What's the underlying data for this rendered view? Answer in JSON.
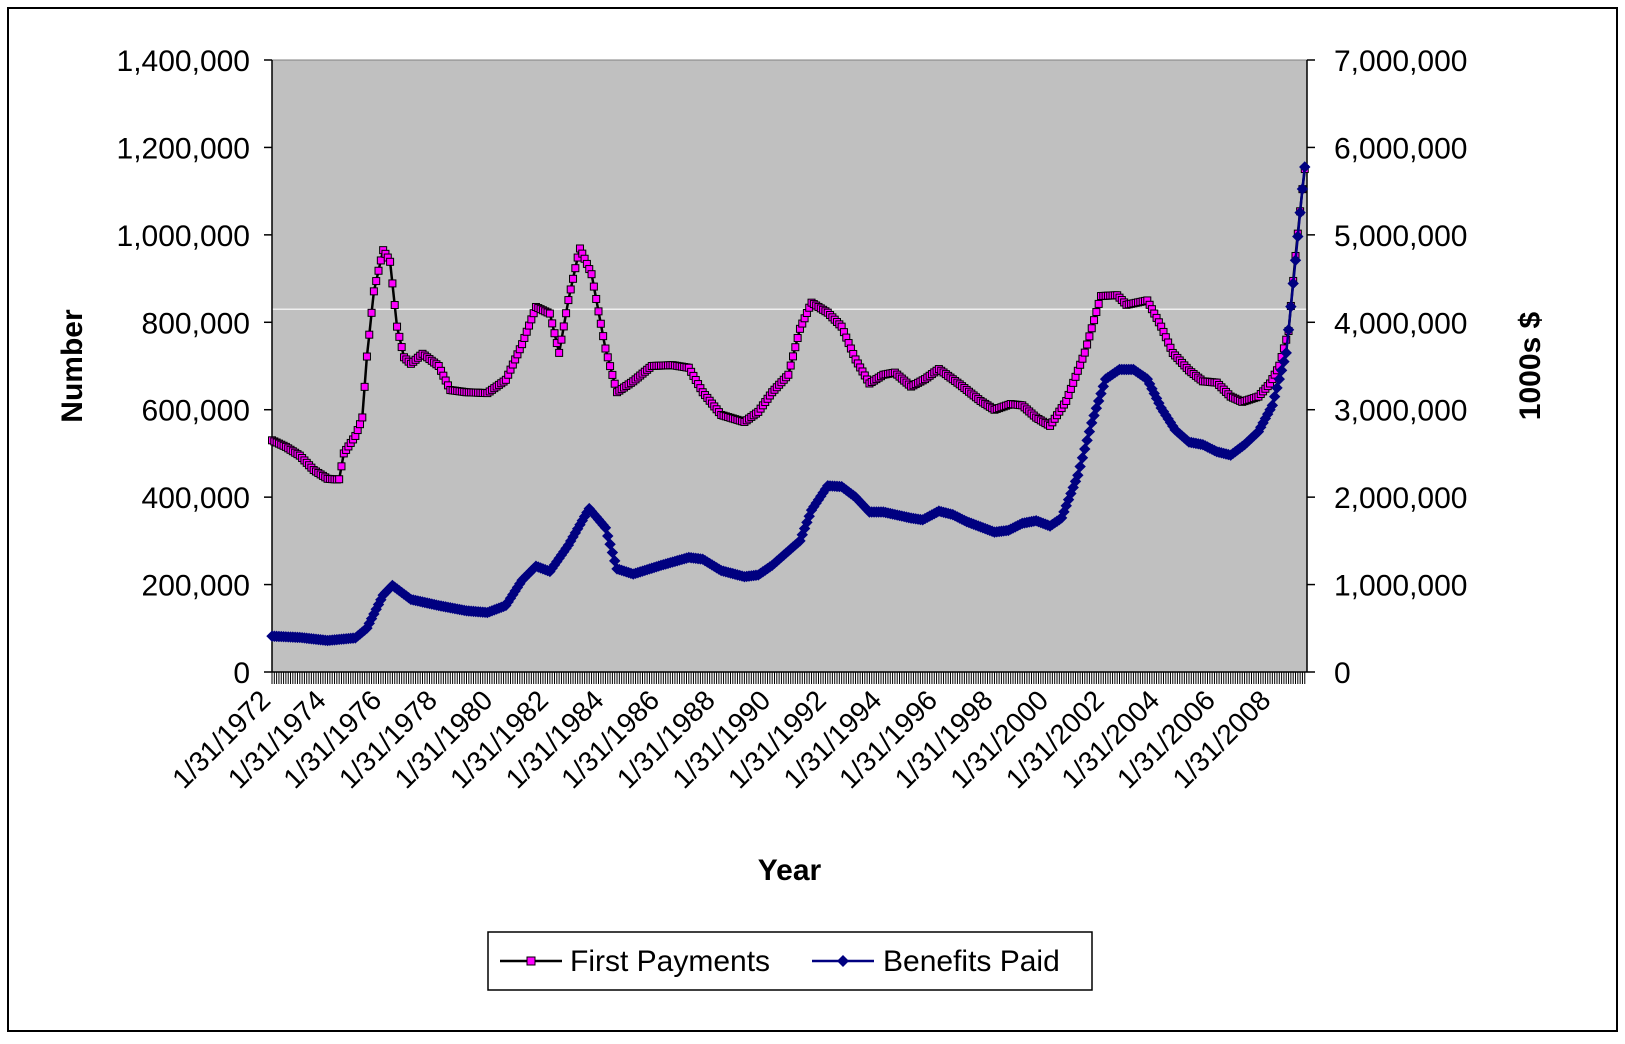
{
  "chart_data": {
    "type": "line",
    "xlabel": "Year",
    "ylabel_left": "Number",
    "ylabel_right": "1000s $",
    "ylim_left": [
      0,
      1400000
    ],
    "ylim_right": [
      0,
      7000000
    ],
    "yticks_left": [
      "0",
      "200,000",
      "400,000",
      "600,000",
      "800,000",
      "1,000,000",
      "1,200,000",
      "1,400,000"
    ],
    "yticks_right": [
      "0",
      "1,000,000",
      "2,000,000",
      "3,000,000",
      "4,000,000",
      "5,000,000",
      "6,000,000",
      "7,000,000"
    ],
    "xlim": [
      "1/31/1972",
      "4/30/2009"
    ],
    "xticks": [
      "1/31/1972",
      "1/31/1974",
      "1/31/1976",
      "1/31/1978",
      "1/31/1980",
      "1/31/1982",
      "1/31/1984",
      "1/31/1986",
      "1/31/1988",
      "1/31/1990",
      "1/31/1992",
      "1/31/1994",
      "1/31/1996",
      "1/31/1998",
      "1/31/2000",
      "1/31/2002",
      "1/31/2004",
      "1/31/2006",
      "1/31/2008"
    ],
    "grid": "single horizontal gridline at 830,000",
    "plot_background": "#c0c0c0",
    "legend_position": "bottom",
    "series": [
      {
        "name": "First Payments",
        "axis": "left",
        "color": "#000000",
        "marker": "square",
        "marker_color": "#ff00ff",
        "points": [
          [
            "1/31/1972",
            530000
          ],
          [
            "7/31/1972",
            515000
          ],
          [
            "1/31/1973",
            495000
          ],
          [
            "7/31/1973",
            462000
          ],
          [
            "1/31/1974",
            442000
          ],
          [
            "6/30/1974",
            440000
          ],
          [
            "8/31/1974",
            500000
          ],
          [
            "1/31/1975",
            540000
          ],
          [
            "4/30/1975",
            580000
          ],
          [
            "6/30/1975",
            720000
          ],
          [
            "9/30/1975",
            870000
          ],
          [
            "1/31/1976",
            965000
          ],
          [
            "4/30/1976",
            940000
          ],
          [
            "7/31/1976",
            790000
          ],
          [
            "10/31/1976",
            720000
          ],
          [
            "1/31/1977",
            705000
          ],
          [
            "6/30/1977",
            728000
          ],
          [
            "1/31/1978",
            700000
          ],
          [
            "6/30/1978",
            645000
          ],
          [
            "1/31/1979",
            640000
          ],
          [
            "10/31/1979",
            638000
          ],
          [
            "6/30/1980",
            668000
          ],
          [
            "1/31/1981",
            750000
          ],
          [
            "7/31/1981",
            835000
          ],
          [
            "1/31/1982",
            820000
          ],
          [
            "5/31/1982",
            730000
          ],
          [
            "9/30/1982",
            850000
          ],
          [
            "2/28/1983",
            970000
          ],
          [
            "7/31/1983",
            910000
          ],
          [
            "1/31/1984",
            740000
          ],
          [
            "6/30/1984",
            640000
          ],
          [
            "1/31/1985",
            665000
          ],
          [
            "9/30/1985",
            700000
          ],
          [
            "6/30/1986",
            702000
          ],
          [
            "1/31/1987",
            696000
          ],
          [
            "7/31/1987",
            640000
          ],
          [
            "3/31/1988",
            588000
          ],
          [
            "1/31/1989",
            572000
          ],
          [
            "7/31/1989",
            595000
          ],
          [
            "1/31/1990",
            640000
          ],
          [
            "8/31/1990",
            680000
          ],
          [
            "1/31/1991",
            785000
          ],
          [
            "6/30/1991",
            845000
          ],
          [
            "1/31/1992",
            822000
          ],
          [
            "7/31/1992",
            790000
          ],
          [
            "1/31/1993",
            715000
          ],
          [
            "7/31/1993",
            660000
          ],
          [
            "1/31/1994",
            680000
          ],
          [
            "6/30/1994",
            685000
          ],
          [
            "1/31/1995",
            653000
          ],
          [
            "7/31/1995",
            670000
          ],
          [
            "1/31/1996",
            693000
          ],
          [
            "10/31/1996",
            658000
          ],
          [
            "7/31/1997",
            620000
          ],
          [
            "1/31/1998",
            600000
          ],
          [
            "8/31/1998",
            613000
          ],
          [
            "1/31/1999",
            610000
          ],
          [
            "7/31/1999",
            582000
          ],
          [
            "1/31/2000",
            563000
          ],
          [
            "8/31/2000",
            620000
          ],
          [
            "4/30/2001",
            730000
          ],
          [
            "11/30/2001",
            860000
          ],
          [
            "6/30/2002",
            862000
          ],
          [
            "10/31/2002",
            840000
          ],
          [
            "7/31/2003",
            850000
          ],
          [
            "1/31/2004",
            790000
          ],
          [
            "6/30/2004",
            730000
          ],
          [
            "1/31/2005",
            690000
          ],
          [
            "7/31/2005",
            665000
          ],
          [
            "1/31/2006",
            662000
          ],
          [
            "7/31/2006",
            630000
          ],
          [
            "12/31/2006",
            618000
          ],
          [
            "7/31/2007",
            630000
          ],
          [
            "12/31/2007",
            660000
          ],
          [
            "4/30/2008",
            700000
          ],
          [
            "8/31/2008",
            780000
          ],
          [
            "11/30/2008",
            950000
          ],
          [
            "2/28/2009",
            1100000
          ],
          [
            "4/30/2009",
            1195000
          ]
        ]
      },
      {
        "name": "Benefits Paid",
        "axis": "right",
        "color": "#000080",
        "marker": "diamond",
        "marker_color": "#000080",
        "points": [
          [
            "1/31/1972",
            410000
          ],
          [
            "1/31/1973",
            395000
          ],
          [
            "1/31/1974",
            360000
          ],
          [
            "1/31/1975",
            390000
          ],
          [
            "6/30/1975",
            500000
          ],
          [
            "1/31/1976",
            880000
          ],
          [
            "5/31/1976",
            990000
          ],
          [
            "1/31/1977",
            830000
          ],
          [
            "1/31/1978",
            760000
          ],
          [
            "1/31/1979",
            700000
          ],
          [
            "10/31/1979",
            680000
          ],
          [
            "6/30/1980",
            760000
          ],
          [
            "1/31/1981",
            1050000
          ],
          [
            "7/31/1981",
            1210000
          ],
          [
            "1/31/1982",
            1150000
          ],
          [
            "9/30/1982",
            1450000
          ],
          [
            "6/30/1983",
            1870000
          ],
          [
            "1/31/1984",
            1650000
          ],
          [
            "6/30/1984",
            1180000
          ],
          [
            "1/31/1985",
            1120000
          ],
          [
            "1/31/1986",
            1220000
          ],
          [
            "1/31/1987",
            1310000
          ],
          [
            "7/31/1987",
            1290000
          ],
          [
            "3/31/1988",
            1160000
          ],
          [
            "1/31/1989",
            1090000
          ],
          [
            "7/31/1989",
            1110000
          ],
          [
            "1/31/1990",
            1220000
          ],
          [
            "1/31/1991",
            1500000
          ],
          [
            "6/30/1991",
            1850000
          ],
          [
            "1/31/1992",
            2130000
          ],
          [
            "7/31/1992",
            2120000
          ],
          [
            "1/31/1993",
            2000000
          ],
          [
            "7/31/1993",
            1830000
          ],
          [
            "1/31/1994",
            1830000
          ],
          [
            "1/31/1995",
            1760000
          ],
          [
            "6/30/1995",
            1740000
          ],
          [
            "1/31/1996",
            1840000
          ],
          [
            "7/31/1996",
            1800000
          ],
          [
            "1/31/1997",
            1720000
          ],
          [
            "1/31/1998",
            1600000
          ],
          [
            "7/31/1998",
            1620000
          ],
          [
            "1/31/1999",
            1700000
          ],
          [
            "7/31/1999",
            1730000
          ],
          [
            "1/31/2000",
            1670000
          ],
          [
            "6/30/2000",
            1760000
          ],
          [
            "1/31/2001",
            2250000
          ],
          [
            "7/31/2001",
            2850000
          ],
          [
            "1/31/2002",
            3350000
          ],
          [
            "7/31/2002",
            3460000
          ],
          [
            "1/31/2003",
            3460000
          ],
          [
            "7/31/2003",
            3350000
          ],
          [
            "1/31/2004",
            3020000
          ],
          [
            "7/31/2004",
            2770000
          ],
          [
            "1/31/2005",
            2630000
          ],
          [
            "7/31/2005",
            2600000
          ],
          [
            "1/31/2006",
            2520000
          ],
          [
            "7/31/2006",
            2480000
          ],
          [
            "1/31/2007",
            2600000
          ],
          [
            "7/31/2007",
            2750000
          ],
          [
            "1/31/2008",
            3050000
          ],
          [
            "7/31/2008",
            3650000
          ],
          [
            "11/30/2008",
            4700000
          ],
          [
            "2/28/2009",
            5500000
          ],
          [
            "4/30/2009",
            6020000
          ]
        ]
      }
    ]
  }
}
